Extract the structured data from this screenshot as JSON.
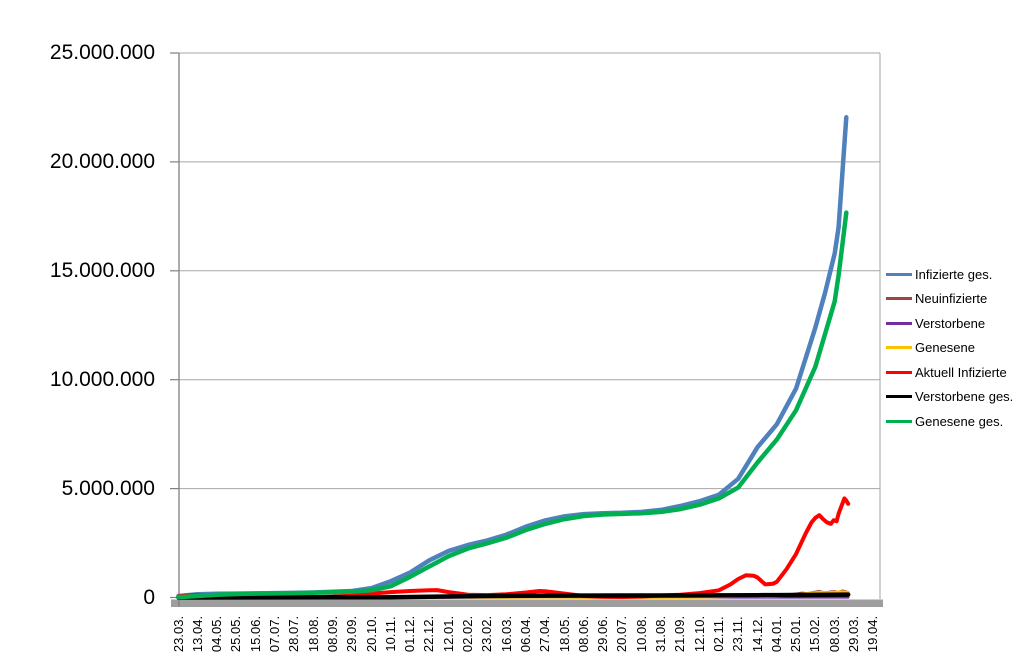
{
  "chart_data": {
    "type": "line",
    "title": "",
    "values_unit": "persons (point values given in millions)",
    "grid": "horizontal-major",
    "legend_position": "right",
    "y_axis": {
      "min": 0,
      "max": 25000000,
      "gridline_step": 5000000,
      "tick_labels_top_to_bottom": [
        "25.000.000",
        "20.000.000",
        "15.000.000",
        "10.000.000",
        "5.000.000",
        "0"
      ]
    },
    "x_axis": {
      "tick_labels": [
        "23.03.",
        "13.04.",
        "04.05.",
        "25.05.",
        "15.06.",
        "07.07.",
        "28.07.",
        "18.08.",
        "08.09.",
        "29.09.",
        "20.10.",
        "10.11.",
        "01.12.",
        "22.12.",
        "12.01.",
        "02.02.",
        "23.02.",
        "16.03.",
        "06.04.",
        "27.04.",
        "18.05.",
        "08.06.",
        "29.06.",
        "20.07.",
        "10.08.",
        "31.08.",
        "21.09.",
        "12.10.",
        "02.11.",
        "23.11.",
        "14.12.",
        "04.01.",
        "25.01.",
        "15.02.",
        "08.03.",
        "29.03.",
        "19.04."
      ]
    },
    "series": [
      {
        "name": "Infizierte ges.",
        "color": "#4F81BD",
        "stroke_width": 4.5,
        "points": [
          [
            0,
            0.07
          ],
          [
            1,
            0.15
          ],
          [
            2,
            0.17
          ],
          [
            3,
            0.18
          ],
          [
            4,
            0.19
          ],
          [
            5,
            0.2
          ],
          [
            6,
            0.21
          ],
          [
            7,
            0.23
          ],
          [
            8,
            0.26
          ],
          [
            9,
            0.3
          ],
          [
            10,
            0.43
          ],
          [
            11,
            0.75
          ],
          [
            12,
            1.15
          ],
          [
            13,
            1.71
          ],
          [
            14,
            2.14
          ],
          [
            15,
            2.41
          ],
          [
            16,
            2.62
          ],
          [
            17,
            2.89
          ],
          [
            18,
            3.25
          ],
          [
            19,
            3.54
          ],
          [
            20,
            3.73
          ],
          [
            21,
            3.83
          ],
          [
            22,
            3.87
          ],
          [
            23,
            3.89
          ],
          [
            24,
            3.93
          ],
          [
            25,
            4.02
          ],
          [
            26,
            4.2
          ],
          [
            27,
            4.42
          ],
          [
            28,
            4.72
          ],
          [
            29,
            5.45
          ],
          [
            30,
            6.9
          ],
          [
            31,
            7.95
          ],
          [
            32,
            9.6
          ],
          [
            33,
            12.4
          ],
          [
            33.5,
            14.0
          ],
          [
            34,
            15.8
          ],
          [
            34.2,
            17.0
          ],
          [
            34.4,
            19.5
          ],
          [
            34.6,
            22.05
          ]
        ]
      },
      {
        "name": "Neuinfizierte",
        "color": "#9E4642",
        "stroke_width": 2.5,
        "points": [
          [
            0,
            0.004
          ],
          [
            1,
            0.006
          ],
          [
            3,
            0.002
          ],
          [
            7,
            0.002
          ],
          [
            9,
            0.007
          ],
          [
            10,
            0.012
          ],
          [
            12,
            0.02
          ],
          [
            13,
            0.025
          ],
          [
            14,
            0.018
          ],
          [
            15,
            0.012
          ],
          [
            17,
            0.013
          ],
          [
            18,
            0.02
          ],
          [
            19,
            0.018
          ],
          [
            21,
            0.005
          ],
          [
            24,
            0.005
          ],
          [
            26,
            0.01
          ],
          [
            27,
            0.015
          ],
          [
            28,
            0.03
          ],
          [
            29,
            0.06
          ],
          [
            29.5,
            0.07
          ],
          [
            30,
            0.06
          ],
          [
            30.5,
            0.04
          ],
          [
            31,
            0.06
          ],
          [
            31.5,
            0.12
          ],
          [
            32,
            0.17
          ],
          [
            32.3,
            0.21
          ],
          [
            32.6,
            0.19
          ],
          [
            33,
            0.26
          ],
          [
            33.2,
            0.29
          ],
          [
            33.4,
            0.25
          ],
          [
            33.6,
            0.23
          ],
          [
            33.8,
            0.27
          ],
          [
            34,
            0.28
          ],
          [
            34.2,
            0.25
          ],
          [
            34.4,
            0.31
          ],
          [
            34.55,
            0.28
          ],
          [
            34.7,
            0.24
          ]
        ]
      },
      {
        "name": "Verstorbene",
        "color": "#7030A0",
        "stroke_width": 2.5,
        "points": [
          [
            0,
            0.003
          ],
          [
            10,
            0.004
          ],
          [
            20,
            0.003
          ],
          [
            30,
            0.004
          ],
          [
            34.7,
            0.004
          ]
        ]
      },
      {
        "name": "Genesene",
        "color": "#FFC000",
        "stroke_width": 3,
        "points": [
          [
            0,
            0.003
          ],
          [
            1,
            0.01
          ],
          [
            2,
            0.008
          ],
          [
            5,
            0.004
          ],
          [
            9,
            0.01
          ],
          [
            11,
            0.02
          ],
          [
            13,
            0.03
          ],
          [
            14,
            0.03
          ],
          [
            15,
            0.02
          ],
          [
            17,
            0.015
          ],
          [
            19,
            0.025
          ],
          [
            21,
            0.015
          ],
          [
            24,
            0.008
          ],
          [
            26,
            0.012
          ],
          [
            27,
            0.02
          ],
          [
            28,
            0.03
          ],
          [
            29,
            0.05
          ],
          [
            30,
            0.06
          ],
          [
            30.5,
            0.05
          ],
          [
            31,
            0.06
          ],
          [
            31.5,
            0.09
          ],
          [
            32,
            0.13
          ],
          [
            32.5,
            0.18
          ],
          [
            33,
            0.22
          ],
          [
            33.3,
            0.24
          ],
          [
            33.6,
            0.22
          ],
          [
            34,
            0.24
          ],
          [
            34.3,
            0.26
          ],
          [
            34.6,
            0.24
          ],
          [
            34.7,
            0.23
          ]
        ]
      },
      {
        "name": "Aktuell Infizierte",
        "color": "#FF0000",
        "stroke_width": 4,
        "points": [
          [
            0,
            0.05
          ],
          [
            0.7,
            0.1
          ],
          [
            1,
            0.11
          ],
          [
            1.5,
            0.08
          ],
          [
            2,
            0.05
          ],
          [
            3,
            0.025
          ],
          [
            4,
            0.015
          ],
          [
            5,
            0.012
          ],
          [
            6,
            0.014
          ],
          [
            7,
            0.02
          ],
          [
            8,
            0.04
          ],
          [
            9,
            0.09
          ],
          [
            10,
            0.18
          ],
          [
            11,
            0.25
          ],
          [
            12,
            0.3
          ],
          [
            13,
            0.33
          ],
          [
            13.4,
            0.34
          ],
          [
            14,
            0.25
          ],
          [
            15,
            0.13
          ],
          [
            16,
            0.11
          ],
          [
            17,
            0.15
          ],
          [
            18,
            0.23
          ],
          [
            18.7,
            0.3
          ],
          [
            19,
            0.29
          ],
          [
            20,
            0.18
          ],
          [
            21,
            0.07
          ],
          [
            22,
            0.035
          ],
          [
            23,
            0.025
          ],
          [
            24,
            0.045
          ],
          [
            25,
            0.09
          ],
          [
            26,
            0.13
          ],
          [
            27,
            0.2
          ],
          [
            28,
            0.33
          ],
          [
            28.6,
            0.6
          ],
          [
            29,
            0.85
          ],
          [
            29.4,
            1.02
          ],
          [
            29.8,
            1.0
          ],
          [
            30,
            0.92
          ],
          [
            30.4,
            0.6
          ],
          [
            30.8,
            0.63
          ],
          [
            31,
            0.72
          ],
          [
            31.5,
            1.3
          ],
          [
            32,
            2.0
          ],
          [
            32.5,
            2.95
          ],
          [
            32.8,
            3.45
          ],
          [
            33,
            3.66
          ],
          [
            33.2,
            3.78
          ],
          [
            33.4,
            3.6
          ],
          [
            33.6,
            3.45
          ],
          [
            33.8,
            3.38
          ],
          [
            33.95,
            3.55
          ],
          [
            34.1,
            3.5
          ],
          [
            34.2,
            3.85
          ],
          [
            34.35,
            4.2
          ],
          [
            34.5,
            4.55
          ],
          [
            34.6,
            4.45
          ],
          [
            34.7,
            4.3
          ]
        ]
      },
      {
        "name": "Verstorbene ges.",
        "color": "#000000",
        "stroke_width": 4.5,
        "points": [
          [
            0,
            0.002
          ],
          [
            8,
            0.01
          ],
          [
            11,
            0.015
          ],
          [
            13,
            0.03
          ],
          [
            14,
            0.045
          ],
          [
            15,
            0.06
          ],
          [
            16,
            0.068
          ],
          [
            18,
            0.078
          ],
          [
            20,
            0.086
          ],
          [
            23,
            0.091
          ],
          [
            26,
            0.093
          ],
          [
            28,
            0.096
          ],
          [
            30,
            0.105
          ],
          [
            31,
            0.112
          ],
          [
            32,
            0.117
          ],
          [
            33,
            0.121
          ],
          [
            34,
            0.126
          ],
          [
            34.7,
            0.131
          ]
        ]
      },
      {
        "name": "Genesene ges.",
        "color": "#00B050",
        "stroke_width": 4.5,
        "points": [
          [
            0,
            0.02
          ],
          [
            1,
            0.07
          ],
          [
            2,
            0.13
          ],
          [
            3,
            0.16
          ],
          [
            4,
            0.18
          ],
          [
            5,
            0.19
          ],
          [
            6,
            0.2
          ],
          [
            7,
            0.22
          ],
          [
            8,
            0.24
          ],
          [
            9,
            0.27
          ],
          [
            10,
            0.33
          ],
          [
            11,
            0.52
          ],
          [
            12,
            0.95
          ],
          [
            13,
            1.43
          ],
          [
            14,
            1.9
          ],
          [
            15,
            2.25
          ],
          [
            16,
            2.49
          ],
          [
            17,
            2.75
          ],
          [
            18,
            3.1
          ],
          [
            19,
            3.38
          ],
          [
            20,
            3.6
          ],
          [
            21,
            3.74
          ],
          [
            22,
            3.81
          ],
          [
            23,
            3.84
          ],
          [
            24,
            3.87
          ],
          [
            25,
            3.93
          ],
          [
            26,
            4.06
          ],
          [
            27,
            4.26
          ],
          [
            28,
            4.55
          ],
          [
            29,
            5.05
          ],
          [
            30,
            6.2
          ],
          [
            31,
            7.25
          ],
          [
            32,
            8.6
          ],
          [
            33,
            10.6
          ],
          [
            34,
            13.6
          ],
          [
            34.2,
            14.8
          ],
          [
            34.4,
            16.2
          ],
          [
            34.6,
            17.67
          ]
        ]
      }
    ],
    "colors": {
      "gridline": "#A6A6A6",
      "axis_line": "#808080",
      "axis_shadow_bar": "#9E9E9E",
      "background": "#FFFFFF"
    }
  }
}
